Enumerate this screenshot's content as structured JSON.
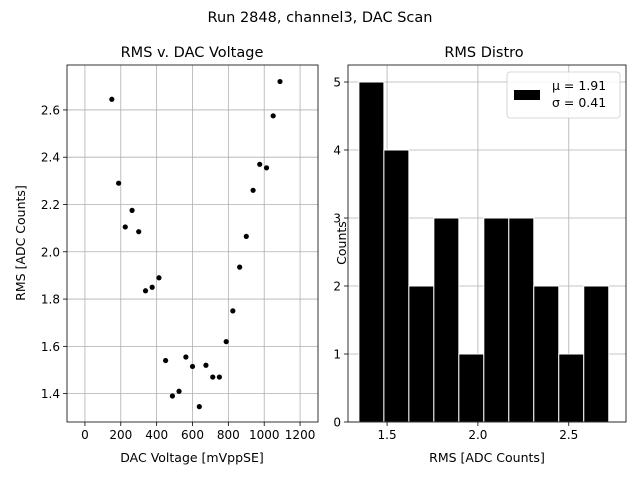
{
  "suptitle": "Run 2848, channel3, DAC Scan",
  "chart_data": [
    {
      "type": "scatter",
      "title": "RMS v. DAC Voltage",
      "xlabel": "DAC Voltage [mVppSE]",
      "ylabel": "RMS [ADC Counts]",
      "xlim": [
        -100,
        1300
      ],
      "ylim": [
        1.28,
        2.79
      ],
      "xticks": [
        0,
        200,
        400,
        600,
        800,
        1000,
        1200
      ],
      "yticks": [
        1.4,
        1.6,
        1.8,
        2.0,
        2.2,
        2.4,
        2.6
      ],
      "ytick_labels": [
        "1.4",
        "1.6",
        "1.8",
        "2.0",
        "2.2",
        "2.4",
        "2.6"
      ],
      "grid": true,
      "marker_color": "#000000",
      "points": [
        {
          "x": 150,
          "y": 2.645
        },
        {
          "x": 188,
          "y": 2.29
        },
        {
          "x": 225,
          "y": 2.105
        },
        {
          "x": 263,
          "y": 2.175
        },
        {
          "x": 300,
          "y": 2.085
        },
        {
          "x": 338,
          "y": 1.835
        },
        {
          "x": 375,
          "y": 1.85
        },
        {
          "x": 413,
          "y": 1.89
        },
        {
          "x": 450,
          "y": 1.54
        },
        {
          "x": 488,
          "y": 1.39
        },
        {
          "x": 525,
          "y": 1.41
        },
        {
          "x": 563,
          "y": 1.555
        },
        {
          "x": 600,
          "y": 1.515
        },
        {
          "x": 638,
          "y": 1.345
        },
        {
          "x": 675,
          "y": 1.52
        },
        {
          "x": 713,
          "y": 1.47
        },
        {
          "x": 750,
          "y": 1.47
        },
        {
          "x": 788,
          "y": 1.62
        },
        {
          "x": 825,
          "y": 1.75
        },
        {
          "x": 863,
          "y": 1.935
        },
        {
          "x": 900,
          "y": 2.065
        },
        {
          "x": 938,
          "y": 2.26
        },
        {
          "x": 975,
          "y": 2.37
        },
        {
          "x": 1013,
          "y": 2.355
        },
        {
          "x": 1050,
          "y": 2.575
        },
        {
          "x": 1088,
          "y": 2.72
        }
      ]
    },
    {
      "type": "bar",
      "title": "RMS Distro",
      "xlabel": "RMS [ADC Counts]",
      "ylabel": "Counts",
      "xlim": [
        1.285,
        2.815
      ],
      "ylim": [
        0,
        5.25
      ],
      "xticks": [
        1.5,
        2.0,
        2.5
      ],
      "yticks": [
        0,
        1,
        2,
        3,
        4,
        5
      ],
      "grid": true,
      "bar_color": "#000000",
      "bar_edge_color": "#ffffff",
      "bin_edges": [
        1.345,
        1.4825,
        1.62,
        1.7575,
        1.895,
        2.0325,
        2.17,
        2.3075,
        2.445,
        2.5825,
        2.72
      ],
      "counts": [
        5,
        4,
        2,
        3,
        1,
        3,
        3,
        2,
        1,
        2
      ],
      "legend": {
        "placement": "upper right",
        "entries": [
          "μ = 1.91",
          "σ = 0.41"
        ]
      }
    }
  ]
}
